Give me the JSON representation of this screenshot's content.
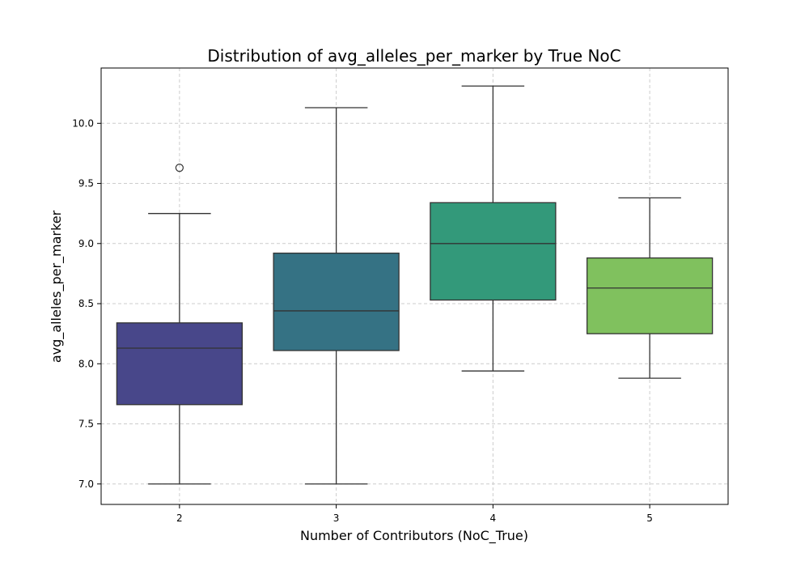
{
  "chart_data": {
    "type": "boxplot",
    "title": "Distribution of avg_alleles_per_marker by True NoC",
    "xlabel": "Number of Contributors (NoC_True)",
    "ylabel": "avg_alleles_per_marker",
    "ylim": [
      6.83,
      10.46
    ],
    "yticks": [
      "7.0",
      "7.5",
      "8.0",
      "8.5",
      "9.0",
      "9.5",
      "10.0"
    ],
    "grid": true,
    "categories": [
      "2",
      "3",
      "4",
      "5"
    ],
    "boxes": [
      {
        "category": "2",
        "whisker_low": 7.0,
        "q1": 7.66,
        "median": 8.13,
        "q3": 8.34,
        "whisker_high": 9.25,
        "outliers": [
          9.63
        ],
        "color": "#48478a"
      },
      {
        "category": "3",
        "whisker_low": 7.0,
        "q1": 8.11,
        "median": 8.44,
        "q3": 8.92,
        "whisker_high": 10.13,
        "outliers": [],
        "color": "#357284"
      },
      {
        "category": "4",
        "whisker_low": 7.94,
        "q1": 8.53,
        "median": 9.0,
        "q3": 9.34,
        "whisker_high": 10.31,
        "outliers": [],
        "color": "#33997a"
      },
      {
        "category": "5",
        "whisker_low": 7.88,
        "q1": 8.25,
        "median": 8.63,
        "q3": 8.88,
        "whisker_high": 9.38,
        "outliers": [],
        "color": "#80c15e"
      }
    ]
  }
}
